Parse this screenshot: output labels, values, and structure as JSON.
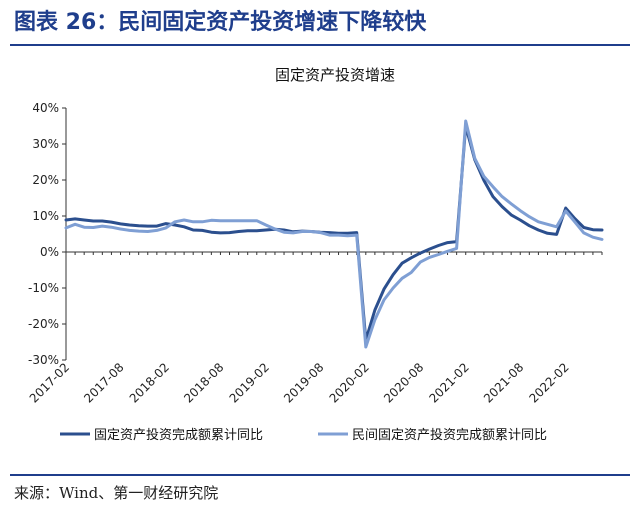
{
  "header": {
    "title": "图表 26：民间固定资产投资增速下降较快"
  },
  "footer": {
    "source": "来源：Wind、第一财经研究院"
  },
  "colors": {
    "accent": "#1f3e8c",
    "series_1": "#2b4f8e",
    "series_2": "#7f9fd4"
  },
  "chart_data": {
    "type": "line",
    "title": "固定资产投资增速",
    "xlabel": "",
    "ylabel": "",
    "ylim": [
      -30,
      40
    ],
    "yticks": [
      -30,
      -20,
      -10,
      0,
      10,
      20,
      30,
      40
    ],
    "ytick_labels": [
      "-30%",
      "-20%",
      "-10%",
      "0%",
      "10%",
      "20%",
      "30%",
      "40%"
    ],
    "x": [
      "2017-02",
      "2017-03",
      "2017-04",
      "2017-05",
      "2017-06",
      "2017-07",
      "2017-08",
      "2017-09",
      "2017-10",
      "2017-11",
      "2017-12",
      "2018-02",
      "2018-03",
      "2018-04",
      "2018-05",
      "2018-06",
      "2018-07",
      "2018-08",
      "2018-09",
      "2018-10",
      "2018-11",
      "2018-12",
      "2019-02",
      "2019-03",
      "2019-04",
      "2019-05",
      "2019-06",
      "2019-07",
      "2019-08",
      "2019-09",
      "2019-10",
      "2019-11",
      "2019-12",
      "2020-02",
      "2020-03",
      "2020-04",
      "2020-05",
      "2020-06",
      "2020-07",
      "2020-08",
      "2020-09",
      "2020-10",
      "2020-11",
      "2020-12",
      "2021-02",
      "2021-03",
      "2021-04",
      "2021-05",
      "2021-06",
      "2021-07",
      "2021-08",
      "2021-09",
      "2021-10",
      "2021-11",
      "2021-12",
      "2022-02",
      "2022-03",
      "2022-04",
      "2022-05",
      "2022-06"
    ],
    "x_tick_labels": [
      "2017-02",
      "2017-08",
      "2018-02",
      "2018-08",
      "2019-02",
      "2019-08",
      "2020-02",
      "2020-08",
      "2021-02",
      "2021-08",
      "2022-02"
    ],
    "legend_position": "bottom",
    "grid": false,
    "series": [
      {
        "name": "固定资产投资完成额累计同比",
        "values": [
          8.9,
          9.2,
          8.9,
          8.6,
          8.6,
          8.3,
          7.8,
          7.5,
          7.3,
          7.2,
          7.2,
          7.9,
          7.5,
          7.0,
          6.1,
          6.0,
          5.5,
          5.3,
          5.4,
          5.7,
          5.9,
          5.9,
          6.1,
          6.3,
          6.1,
          5.6,
          5.8,
          5.7,
          5.5,
          5.4,
          5.2,
          5.2,
          5.4,
          -24.5,
          -16.1,
          -10.3,
          -6.3,
          -3.1,
          -1.6,
          -0.3,
          0.8,
          1.8,
          2.6,
          2.9,
          35.0,
          25.6,
          19.9,
          15.4,
          12.6,
          10.3,
          8.9,
          7.3,
          6.1,
          5.2,
          4.9,
          12.2,
          9.3,
          6.8,
          6.2,
          6.1
        ]
      },
      {
        "name": "民间固定资产投资完成额累计同比",
        "values": [
          6.7,
          7.7,
          6.9,
          6.8,
          7.2,
          6.9,
          6.4,
          6.0,
          5.8,
          5.7,
          6.0,
          6.7,
          8.4,
          8.9,
          8.4,
          8.4,
          8.8,
          8.7,
          8.7,
          8.7,
          8.7,
          8.7,
          7.5,
          6.4,
          5.5,
          5.3,
          5.7,
          5.7,
          5.4,
          4.7,
          4.7,
          4.5,
          4.7,
          -26.4,
          -18.8,
          -13.3,
          -10.0,
          -7.3,
          -5.7,
          -2.8,
          -1.5,
          -0.7,
          0.2,
          1.0,
          36.4,
          26.0,
          21.0,
          18.1,
          15.4,
          13.4,
          11.5,
          9.8,
          8.4,
          7.7,
          7.0,
          11.4,
          8.4,
          5.3,
          4.1,
          3.5
        ]
      }
    ]
  }
}
